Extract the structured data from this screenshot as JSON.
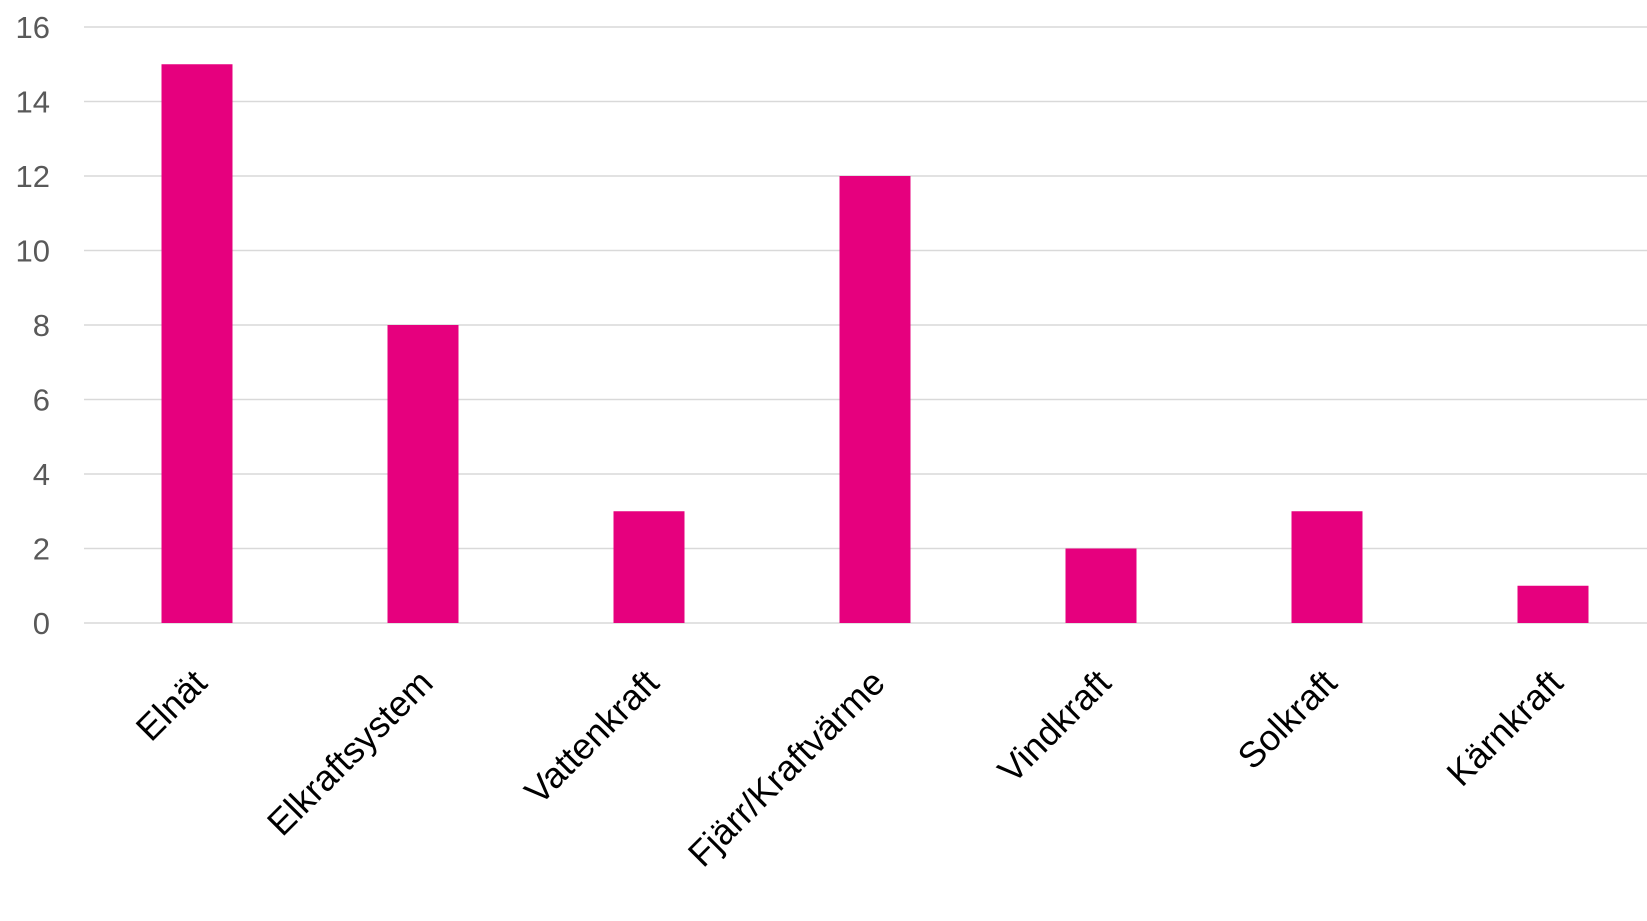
{
  "chart_data": {
    "type": "bar",
    "categories": [
      "Elnät",
      "Elkraftsystem",
      "Vattenkraft",
      "Fjärr/Kraftvärme",
      "Vindkraft",
      "Solkraft",
      "Kärnkraft"
    ],
    "values": [
      15,
      8,
      3,
      12,
      2,
      3,
      1
    ],
    "title": "",
    "xlabel": "",
    "ylabel": "",
    "ylim": [
      0,
      16
    ],
    "yticks": [
      0,
      2,
      4,
      6,
      8,
      10,
      12,
      14,
      16
    ],
    "grid": true,
    "legend": "none",
    "colors": {
      "bar": "#E6007E",
      "grid": "#D9D9D9",
      "ytick_text": "#595959",
      "xtick_text": "#000000"
    }
  }
}
